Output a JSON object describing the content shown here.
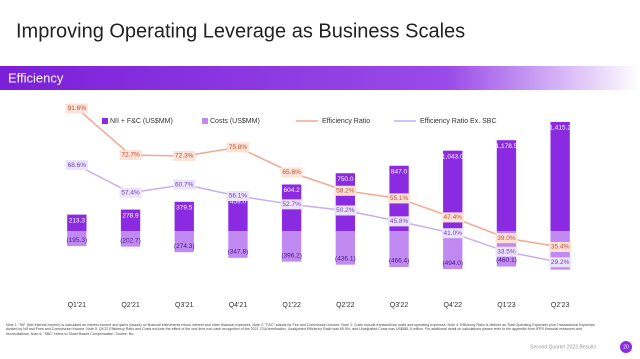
{
  "header": {
    "title": "Improving Operating Leverage as Business Scales",
    "section": "Efficiency"
  },
  "chart_data": {
    "type": "bar_line",
    "categories": [
      "Q1'21",
      "Q2'21",
      "Q3'21",
      "Q4'21",
      "Q1'22",
      "Q2'22",
      "Q3'22",
      "Q4'22",
      "Q1'23",
      "Q2'23"
    ],
    "ylim": [
      -700,
      1700
    ],
    "y2lim": [
      20,
      95
    ],
    "series": [
      {
        "name": "NII + F&C (US$MM)",
        "color": "#8a2be2",
        "values": [
          213.3,
          278.9,
          379.5,
          459.0,
          604.2,
          750.0,
          847.0,
          1043.0,
          1178.5,
          1415.2
        ],
        "value_labels": [
          "213.3",
          "278.9",
          "379.5",
          "459.0",
          "604.2",
          "750.0",
          "847.0",
          "1,043.0",
          "1,178.5",
          "1,415.2"
        ]
      },
      {
        "name": "Costs (US$MM)",
        "color": "#c08af2",
        "values": [
          -195.3,
          -202.7,
          -274.3,
          -347.8,
          -396.2,
          -436.1,
          -466.4,
          -494.0,
          -460.1,
          -500.8
        ],
        "value_labels": [
          "(195.3)",
          "(202.7)",
          "(274.3)",
          "(347.8)",
          "(396.2)",
          "(436.1)",
          "(466.4)",
          "(494.0)",
          "(460.1)",
          "(500.8)"
        ]
      },
      {
        "name": "Efficiency Ratio",
        "color": "#f4a78e",
        "axis": "y2",
        "values": [
          91.6,
          72.7,
          72.3,
          75.8,
          65.6,
          58.2,
          55.1,
          47.4,
          39.0,
          35.4
        ],
        "value_labels": [
          "91.6%",
          "72.7%",
          "72.3%",
          "75.8%",
          "65.6%",
          "58.2%",
          "55.1%",
          "47.4%",
          "39.0%",
          "35.4%"
        ]
      },
      {
        "name": "Efficiency Ratio Ex. SBC",
        "color": "#c6aef2",
        "axis": "y2",
        "values": [
          68.6,
          57.4,
          60.7,
          56.1,
          52.7,
          50.2,
          45.8,
          41.0,
          33.5,
          29.2
        ],
        "value_labels": [
          "68.6%",
          "57.4%",
          "60.7%",
          "56.1%",
          "52.7%",
          "50.2%",
          "45.8%",
          "41.0%",
          "33.5%",
          "29.2%"
        ]
      }
    ]
  },
  "footnote": "Note 1: \"NII\" (Net Interest Income) is calculated as interest income and gains (losses) on financial instruments minus interest and other financial expenses. Note 2: \"F&C\" stands for Fee and Commission Income. Note 3: Costs include transactional costs and operating expenses. Note 4: Efficiency Ratio is defined as Total Operating Expenses plus Transactional Expenses divided by NII and Fees and Commission Income. Note 5: Q4'22 Efficiency Ratio and Costs exclude the effect of the one-time non-cash recognition of the 2021 CSA termination. Unadjusted Efficiency Ratio was 65.5%, and Unadjusted Costs was US$861.5 million. For additional detail on calculations please refer to the appendix from IFRS financial measures and reconciliations. Note 6: \"SBC\" refers to Share Based Compensation. Source: Nu.",
  "footer": {
    "text": "Second Quarter 2023 Results",
    "page": "20"
  }
}
